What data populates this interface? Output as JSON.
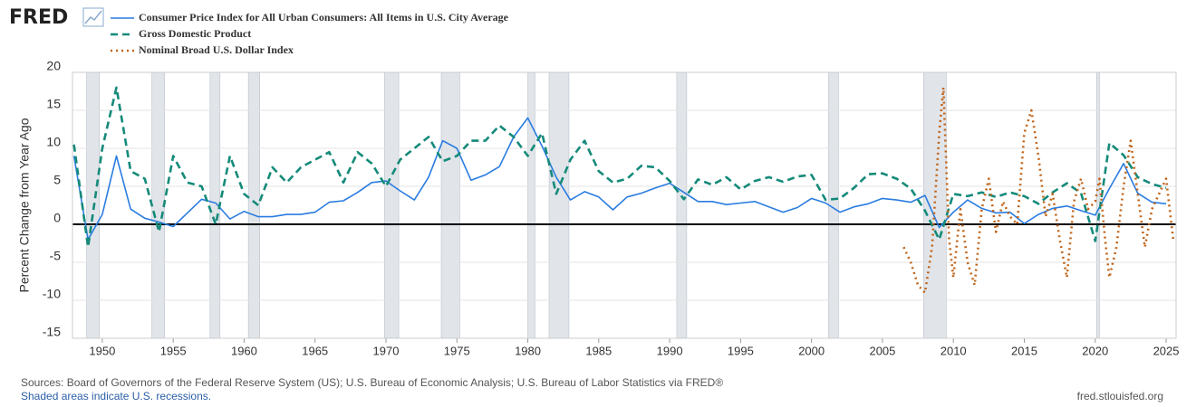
{
  "chart_data": {
    "type": "line",
    "logo": "FRED",
    "y_label": "Percent Change from Year Ago",
    "source": "Sources: Board of Governors of the Federal Reserve System (US); U.S. Bureau of Economic Analysis; U.S. Bureau of Labor Statistics via FRED®",
    "recession_note": "Shaded areas indicate U.S. recessions.",
    "site": "fred.stlouisfed.org",
    "xlim": [
      1947.9,
      2025.7
    ],
    "xticks": [
      1950,
      1955,
      1960,
      1965,
      1970,
      1975,
      1980,
      1985,
      1990,
      1995,
      2000,
      2005,
      2010,
      2015,
      2020,
      2025
    ],
    "ylim": [
      -15,
      20
    ],
    "yticks": [
      -15,
      -10,
      -5,
      0,
      5,
      10,
      15,
      20
    ],
    "grid": true,
    "recession_color": "#e1e5ea",
    "recessions": [
      [
        1948.9,
        1949.8
      ],
      [
        1953.5,
        1954.4
      ],
      [
        1957.6,
        1958.3
      ],
      [
        1960.3,
        1961.1
      ],
      [
        1969.9,
        1970.9
      ],
      [
        1973.9,
        1975.2
      ],
      [
        1980.0,
        1980.5
      ],
      [
        1981.5,
        1982.9
      ],
      [
        1990.5,
        1991.2
      ],
      [
        2001.2,
        2001.9
      ],
      [
        2007.9,
        2009.5
      ],
      [
        2020.1,
        2020.3
      ]
    ],
    "series": [
      {
        "name": "Consumer Price Index for All Urban Consumers: All Items in U.S. City Average",
        "color": "#2a7ce0",
        "style": "solid",
        "x": [
          1948,
          1949,
          1950,
          1951,
          1952,
          1953,
          1954,
          1955,
          1956,
          1957,
          1958,
          1959,
          1960,
          1961,
          1962,
          1963,
          1964,
          1965,
          1966,
          1967,
          1968,
          1969,
          1970,
          1971,
          1972,
          1973,
          1974,
          1975,
          1976,
          1977,
          1978,
          1979,
          1980,
          1981,
          1982,
          1983,
          1984,
          1985,
          1986,
          1987,
          1988,
          1989,
          1990,
          1991,
          1992,
          1993,
          1994,
          1995,
          1996,
          1997,
          1998,
          1999,
          2000,
          2001,
          2002,
          2003,
          2004,
          2005,
          2006,
          2007,
          2008,
          2009,
          2010,
          2011,
          2012,
          2013,
          2014,
          2015,
          2016,
          2017,
          2018,
          2019,
          2020,
          2021,
          2022,
          2023,
          2024,
          2025
        ],
        "values": [
          9,
          -2,
          1.3,
          9,
          2,
          0.8,
          0.3,
          -0.3,
          1.5,
          3.3,
          2.8,
          0.7,
          1.7,
          1.0,
          1.0,
          1.3,
          1.3,
          1.6,
          2.9,
          3.1,
          4.2,
          5.5,
          5.7,
          4.4,
          3.2,
          6.2,
          11,
          10,
          5.8,
          6.5,
          7.6,
          11.5,
          14,
          10.3,
          6.2,
          3.2,
          4.3,
          3.6,
          1.9,
          3.6,
          4.1,
          4.8,
          5.4,
          4.2,
          3.0,
          3.0,
          2.6,
          2.8,
          3.0,
          2.3,
          1.6,
          2.2,
          3.4,
          2.8,
          1.6,
          2.3,
          2.7,
          3.4,
          3.2,
          2.9,
          3.8,
          -0.4,
          1.6,
          3.2,
          2.1,
          1.5,
          1.6,
          0.1,
          1.3,
          2.1,
          2.4,
          1.8,
          1.2,
          4.7,
          8.0,
          4.1,
          2.9,
          2.7
        ]
      },
      {
        "name": "Gross Domestic Product",
        "color": "#158a7a",
        "style": "dashed",
        "x": [
          1948,
          1949,
          1950,
          1951,
          1952,
          1953,
          1954,
          1955,
          1956,
          1957,
          1958,
          1959,
          1960,
          1961,
          1962,
          1963,
          1964,
          1965,
          1966,
          1967,
          1968,
          1969,
          1970,
          1971,
          1972,
          1973,
          1974,
          1975,
          1976,
          1977,
          1978,
          1979,
          1980,
          1981,
          1982,
          1983,
          1984,
          1985,
          1986,
          1987,
          1988,
          1989,
          1990,
          1991,
          1992,
          1993,
          1994,
          1995,
          1996,
          1997,
          1998,
          1999,
          2000,
          2001,
          2002,
          2003,
          2004,
          2005,
          2006,
          2007,
          2008,
          2009,
          2010,
          2011,
          2012,
          2013,
          2014,
          2015,
          2016,
          2017,
          2018,
          2019,
          2020,
          2021,
          2022,
          2023,
          2024,
          2025
        ],
        "values": [
          10.5,
          -3,
          10,
          18,
          7,
          6,
          -1,
          9,
          5.5,
          5,
          0,
          9,
          4,
          2.5,
          7.5,
          5.5,
          7.5,
          8.5,
          9.5,
          5.5,
          9.5,
          8,
          5,
          8.5,
          10,
          11.5,
          8.3,
          9,
          11,
          11,
          13,
          11.5,
          9,
          12,
          4,
          8.5,
          11,
          7,
          5.5,
          6,
          7.7,
          7.5,
          5.7,
          3.3,
          5.9,
          5.2,
          6.2,
          4.6,
          5.7,
          6.2,
          5.6,
          6.3,
          6.5,
          3.2,
          3.4,
          4.8,
          6.6,
          6.7,
          6.0,
          4.7,
          1.8,
          -2.0,
          4.0,
          3.7,
          4.2,
          3.6,
          4.2,
          3.7,
          2.7,
          4.2,
          5.4,
          4.1,
          -2.2,
          10.7,
          9.1,
          6.2,
          5.3,
          4.8
        ]
      },
      {
        "name": "Nominal Broad U.S. Dollar Index",
        "color": "#c0651b",
        "style": "dotted",
        "x": [
          2006.5,
          2007,
          2007.5,
          2008,
          2008.5,
          2009,
          2009.3,
          2009.7,
          2010,
          2010.5,
          2011,
          2011.5,
          2012,
          2012.5,
          2013,
          2013.5,
          2014,
          2014.5,
          2015,
          2015.5,
          2016,
          2016.5,
          2017,
          2017.5,
          2018,
          2018.5,
          2019,
          2019.5,
          2020,
          2020.3,
          2020.7,
          2021,
          2021.5,
          2022,
          2022.5,
          2023,
          2023.5,
          2024,
          2024.5,
          2025,
          2025.5
        ],
        "values": [
          -3,
          -5,
          -8,
          -9,
          -3,
          12,
          18,
          -2,
          -7,
          2,
          -5,
          -8,
          2,
          6,
          -1,
          3,
          1,
          0,
          12,
          15,
          9,
          1,
          4,
          -2,
          -7,
          3,
          6,
          2,
          3,
          6,
          -2,
          -7,
          -3,
          5,
          11,
          4,
          -3,
          2,
          4,
          6,
          -2
        ]
      }
    ]
  }
}
